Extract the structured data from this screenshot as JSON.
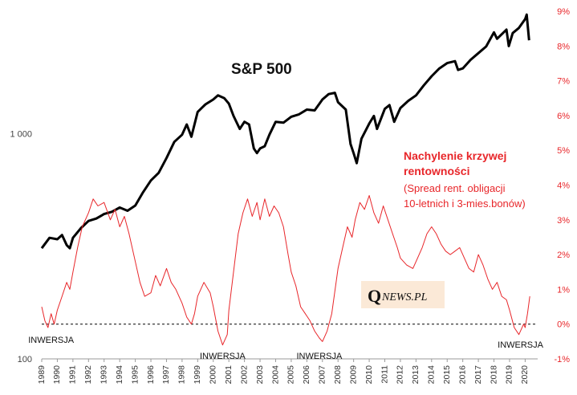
{
  "chart_data": {
    "type": "line",
    "title": "S&P 500",
    "left_axis": {
      "scale": "log",
      "ticks": [
        "100",
        "1 000"
      ],
      "tick_values": [
        100,
        1000
      ],
      "range": [
        100,
        3500
      ]
    },
    "right_axis": {
      "ticks": [
        "9%",
        "8%",
        "7%",
        "6%",
        "5%",
        "4%",
        "3%",
        "2%",
        "1%",
        "0%",
        "-1%"
      ],
      "range": [
        -1,
        9
      ]
    },
    "x_ticks": [
      "1989",
      "1990",
      "1991",
      "1992",
      "1993",
      "1994",
      "1995",
      "1996",
      "1997",
      "1998",
      "1999",
      "2000",
      "2001",
      "2002",
      "2003",
      "2004",
      "2005",
      "2006",
      "2007",
      "2008",
      "2009",
      "2010",
      "2011",
      "2012",
      "2013",
      "2014",
      "2015",
      "2016",
      "2017",
      "2018",
      "2019",
      "2020"
    ],
    "x_range": [
      1989,
      2020.7
    ],
    "grid": false,
    "series": [
      {
        "name": "S&P 500",
        "color": "#000000",
        "axis": "left",
        "points": [
          [
            1989.0,
            310
          ],
          [
            1989.5,
            345
          ],
          [
            1990.0,
            340
          ],
          [
            1990.3,
            355
          ],
          [
            1990.6,
            320
          ],
          [
            1990.8,
            310
          ],
          [
            1991.0,
            345
          ],
          [
            1991.5,
            380
          ],
          [
            1992.0,
            410
          ],
          [
            1992.5,
            420
          ],
          [
            1993.0,
            440
          ],
          [
            1993.5,
            450
          ],
          [
            1994.0,
            470
          ],
          [
            1994.5,
            455
          ],
          [
            1995.0,
            480
          ],
          [
            1995.5,
            550
          ],
          [
            1996.0,
            620
          ],
          [
            1996.5,
            670
          ],
          [
            1997.0,
            780
          ],
          [
            1997.5,
            920
          ],
          [
            1998.0,
            990
          ],
          [
            1998.3,
            1100
          ],
          [
            1998.6,
            970
          ],
          [
            1999.0,
            1250
          ],
          [
            1999.5,
            1350
          ],
          [
            2000.0,
            1420
          ],
          [
            2000.3,
            1480
          ],
          [
            2000.7,
            1440
          ],
          [
            2001.0,
            1360
          ],
          [
            2001.3,
            1200
          ],
          [
            2001.7,
            1050
          ],
          [
            2002.0,
            1130
          ],
          [
            2002.3,
            1100
          ],
          [
            2002.6,
            860
          ],
          [
            2002.8,
            820
          ],
          [
            2003.0,
            860
          ],
          [
            2003.3,
            880
          ],
          [
            2003.6,
            990
          ],
          [
            2004.0,
            1130
          ],
          [
            2004.5,
            1120
          ],
          [
            2005.0,
            1190
          ],
          [
            2005.5,
            1220
          ],
          [
            2006.0,
            1280
          ],
          [
            2006.5,
            1270
          ],
          [
            2007.0,
            1420
          ],
          [
            2007.4,
            1500
          ],
          [
            2007.8,
            1520
          ],
          [
            2008.0,
            1380
          ],
          [
            2008.5,
            1280
          ],
          [
            2008.8,
            900
          ],
          [
            2009.0,
            820
          ],
          [
            2009.2,
            740
          ],
          [
            2009.5,
            950
          ],
          [
            2010.0,
            1110
          ],
          [
            2010.3,
            1200
          ],
          [
            2010.5,
            1050
          ],
          [
            2011.0,
            1290
          ],
          [
            2011.3,
            1340
          ],
          [
            2011.6,
            1130
          ],
          [
            2012.0,
            1300
          ],
          [
            2012.5,
            1400
          ],
          [
            2013.0,
            1480
          ],
          [
            2013.5,
            1640
          ],
          [
            2014.0,
            1800
          ],
          [
            2014.5,
            1950
          ],
          [
            2015.0,
            2060
          ],
          [
            2015.5,
            2100
          ],
          [
            2015.7,
            1920
          ],
          [
            2016.0,
            1950
          ],
          [
            2016.5,
            2130
          ],
          [
            2017.0,
            2280
          ],
          [
            2017.5,
            2440
          ],
          [
            2018.0,
            2820
          ],
          [
            2018.2,
            2640
          ],
          [
            2018.8,
            2900
          ],
          [
            2018.95,
            2450
          ],
          [
            2019.2,
            2800
          ],
          [
            2019.6,
            2950
          ],
          [
            2020.0,
            3230
          ],
          [
            2020.1,
            3380
          ],
          [
            2020.25,
            2600
          ]
        ]
      },
      {
        "name": "Nachylenie krzywej rentowności",
        "color": "#e8262a",
        "axis": "right",
        "points": [
          [
            1989.0,
            0.5
          ],
          [
            1989.2,
            0.1
          ],
          [
            1989.4,
            -0.1
          ],
          [
            1989.6,
            0.3
          ],
          [
            1989.8,
            0.0
          ],
          [
            1990.0,
            0.4
          ],
          [
            1990.3,
            0.8
          ],
          [
            1990.6,
            1.2
          ],
          [
            1990.8,
            1.0
          ],
          [
            1991.0,
            1.5
          ],
          [
            1991.3,
            2.2
          ],
          [
            1991.6,
            2.8
          ],
          [
            1992.0,
            3.2
          ],
          [
            1992.3,
            3.6
          ],
          [
            1992.6,
            3.4
          ],
          [
            1993.0,
            3.5
          ],
          [
            1993.4,
            3.0
          ],
          [
            1993.7,
            3.3
          ],
          [
            1994.0,
            2.8
          ],
          [
            1994.3,
            3.1
          ],
          [
            1994.6,
            2.6
          ],
          [
            1995.0,
            1.8
          ],
          [
            1995.3,
            1.2
          ],
          [
            1995.6,
            0.8
          ],
          [
            1996.0,
            0.9
          ],
          [
            1996.3,
            1.4
          ],
          [
            1996.6,
            1.1
          ],
          [
            1997.0,
            1.6
          ],
          [
            1997.3,
            1.2
          ],
          [
            1997.6,
            1.0
          ],
          [
            1998.0,
            0.6
          ],
          [
            1998.3,
            0.2
          ],
          [
            1998.6,
            0.0
          ],
          [
            1998.8,
            0.3
          ],
          [
            1999.0,
            0.8
          ],
          [
            1999.4,
            1.2
          ],
          [
            1999.8,
            0.9
          ],
          [
            2000.0,
            0.5
          ],
          [
            2000.3,
            -0.2
          ],
          [
            2000.6,
            -0.6
          ],
          [
            2000.9,
            -0.3
          ],
          [
            2001.0,
            0.4
          ],
          [
            2001.3,
            1.5
          ],
          [
            2001.6,
            2.6
          ],
          [
            2001.9,
            3.2
          ],
          [
            2002.2,
            3.6
          ],
          [
            2002.5,
            3.1
          ],
          [
            2002.8,
            3.5
          ],
          [
            2003.0,
            3.0
          ],
          [
            2003.3,
            3.6
          ],
          [
            2003.6,
            3.1
          ],
          [
            2003.9,
            3.4
          ],
          [
            2004.2,
            3.2
          ],
          [
            2004.5,
            2.8
          ],
          [
            2004.8,
            2.0
          ],
          [
            2005.0,
            1.5
          ],
          [
            2005.3,
            1.1
          ],
          [
            2005.6,
            0.5
          ],
          [
            2005.9,
            0.3
          ],
          [
            2006.2,
            0.1
          ],
          [
            2006.5,
            -0.2
          ],
          [
            2006.8,
            -0.4
          ],
          [
            2007.0,
            -0.5
          ],
          [
            2007.3,
            -0.2
          ],
          [
            2007.6,
            0.3
          ],
          [
            2008.0,
            1.6
          ],
          [
            2008.3,
            2.2
          ],
          [
            2008.6,
            2.8
          ],
          [
            2008.9,
            2.5
          ],
          [
            2009.1,
            3.0
          ],
          [
            2009.4,
            3.5
          ],
          [
            2009.7,
            3.3
          ],
          [
            2010.0,
            3.7
          ],
          [
            2010.3,
            3.2
          ],
          [
            2010.6,
            2.9
          ],
          [
            2010.9,
            3.4
          ],
          [
            2011.2,
            3.0
          ],
          [
            2011.5,
            2.6
          ],
          [
            2011.8,
            2.2
          ],
          [
            2012.0,
            1.9
          ],
          [
            2012.4,
            1.7
          ],
          [
            2012.8,
            1.6
          ],
          [
            2013.0,
            1.8
          ],
          [
            2013.4,
            2.2
          ],
          [
            2013.7,
            2.6
          ],
          [
            2014.0,
            2.8
          ],
          [
            2014.3,
            2.6
          ],
          [
            2014.6,
            2.3
          ],
          [
            2014.9,
            2.1
          ],
          [
            2015.2,
            2.0
          ],
          [
            2015.5,
            2.1
          ],
          [
            2015.8,
            2.2
          ],
          [
            2016.1,
            1.9
          ],
          [
            2016.4,
            1.6
          ],
          [
            2016.7,
            1.5
          ],
          [
            2017.0,
            2.0
          ],
          [
            2017.3,
            1.7
          ],
          [
            2017.6,
            1.3
          ],
          [
            2017.9,
            1.0
          ],
          [
            2018.2,
            1.2
          ],
          [
            2018.5,
            0.8
          ],
          [
            2018.8,
            0.7
          ],
          [
            2019.0,
            0.4
          ],
          [
            2019.3,
            -0.1
          ],
          [
            2019.6,
            -0.3
          ],
          [
            2019.9,
            0.0
          ],
          [
            2020.0,
            -0.1
          ],
          [
            2020.15,
            0.3
          ],
          [
            2020.3,
            0.8
          ]
        ]
      }
    ],
    "annotations": {
      "spread_title_line1": "Nachylenie krzywej",
      "spread_title_line2": "rentowności",
      "spread_note_line1": "(Spread rent. obligacji",
      "spread_note_line2": "10-letnich i 3-mies.bonów)",
      "inversion_label": "INWERSJA",
      "inversions": [
        1989.6,
        2000.6,
        2006.8,
        2019.7
      ]
    },
    "logo": {
      "q": "Q",
      "rest": "NEWS.PL"
    },
    "colors": {
      "spx": "#000000",
      "spread": "#e8262a",
      "right_ticks": "#e8262a"
    }
  }
}
